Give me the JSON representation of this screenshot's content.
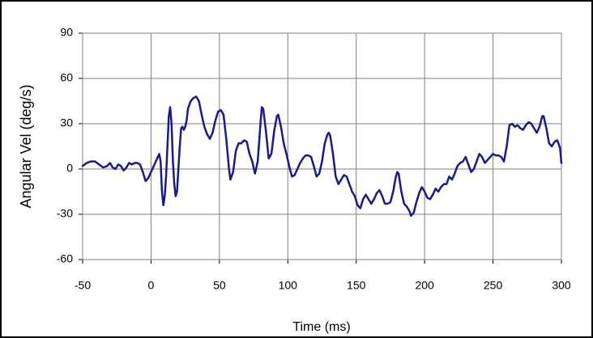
{
  "chart_data": {
    "type": "line",
    "x_label": "Time (ms)",
    "y_label": "Angular Vel (deg/s)",
    "color": "#1a1a8c",
    "xlim": [
      -50,
      300
    ],
    "ylim": [
      -60,
      90
    ],
    "xticks": [
      -50,
      0,
      50,
      100,
      150,
      200,
      250,
      300
    ],
    "yticks": [
      -60,
      -30,
      0,
      30,
      60,
      90
    ],
    "grid": true,
    "x": [
      -50,
      -47,
      -44,
      -41,
      -38,
      -35,
      -32,
      -30,
      -28,
      -26,
      -24,
      -22,
      -20,
      -18,
      -16,
      -14,
      -12,
      -10,
      -8,
      -6,
      -4,
      -2,
      0,
      2,
      4,
      6,
      7,
      8,
      9,
      10,
      11,
      12,
      13,
      14,
      15,
      16,
      17,
      18,
      19,
      20,
      21,
      22,
      23,
      24,
      25,
      26,
      27,
      29,
      31,
      33,
      35,
      37,
      39,
      41,
      43,
      45,
      47,
      49,
      51,
      53,
      55,
      57,
      58,
      60,
      62,
      64,
      66,
      68,
      70,
      72,
      74,
      76,
      78,
      80,
      81,
      82,
      84,
      86,
      88,
      90,
      92,
      93,
      95,
      97,
      99,
      101,
      103,
      105,
      107,
      109,
      111,
      113,
      115,
      117,
      119,
      121,
      123,
      125,
      127,
      129,
      130,
      131,
      133,
      135,
      137,
      139,
      141,
      143,
      145,
      147,
      149,
      151,
      153,
      155,
      157,
      159,
      161,
      163,
      165,
      167,
      169,
      171,
      173,
      175,
      177,
      179,
      180,
      181,
      183,
      185,
      187,
      189,
      190,
      192,
      194,
      196,
      198,
      200,
      202,
      204,
      206,
      208,
      210,
      212,
      214,
      216,
      218,
      220,
      222,
      224,
      226,
      228,
      230,
      232,
      234,
      236,
      238,
      240,
      242,
      244,
      246,
      248,
      250,
      252,
      254,
      256,
      258,
      260,
      262,
      264,
      266,
      268,
      270,
      272,
      274,
      276,
      278,
      280,
      282,
      284,
      286,
      287,
      289,
      291,
      293,
      295,
      297,
      299,
      300
    ],
    "values": [
      2,
      4,
      5,
      5,
      3,
      1,
      2,
      4,
      1,
      0,
      3,
      2,
      -1,
      1,
      4,
      3,
      4,
      4,
      3,
      -2,
      -8,
      -6,
      -2,
      2,
      6,
      10,
      5,
      -15,
      -24,
      -18,
      -5,
      15,
      35,
      41,
      30,
      5,
      -10,
      -18,
      -15,
      0,
      15,
      27,
      28,
      26,
      28,
      32,
      40,
      45,
      47,
      48,
      45,
      36,
      28,
      23,
      20,
      24,
      32,
      38,
      39,
      36,
      20,
      0,
      -7,
      -2,
      12,
      17,
      17,
      19,
      18,
      10,
      5,
      -3,
      5,
      30,
      41,
      40,
      25,
      7,
      10,
      25,
      35,
      36,
      28,
      17,
      10,
      2,
      -5,
      -4,
      0,
      4,
      7,
      9,
      9,
      8,
      2,
      -5,
      -3,
      5,
      17,
      23,
      24,
      22,
      10,
      -5,
      -10,
      -7,
      -4,
      -5,
      -10,
      -15,
      -18,
      -24,
      -26,
      -20,
      -17,
      -20,
      -23,
      -20,
      -16,
      -14,
      -18,
      -23,
      -23,
      -22,
      -15,
      -5,
      -2,
      -3,
      -15,
      -23,
      -25,
      -28,
      -31,
      -29,
      -22,
      -16,
      -12,
      -15,
      -19,
      -20,
      -17,
      -13,
      -15,
      -12,
      -10,
      -10,
      -5,
      -7,
      -3,
      2,
      4,
      5,
      8,
      3,
      -2,
      0,
      5,
      10,
      8,
      4,
      6,
      8,
      10,
      9,
      9,
      8,
      5,
      15,
      29,
      30,
      28,
      29,
      27,
      26,
      29,
      31,
      30,
      27,
      24,
      28,
      35,
      35,
      27,
      17,
      15,
      18,
      19,
      14,
      4
    ]
  }
}
